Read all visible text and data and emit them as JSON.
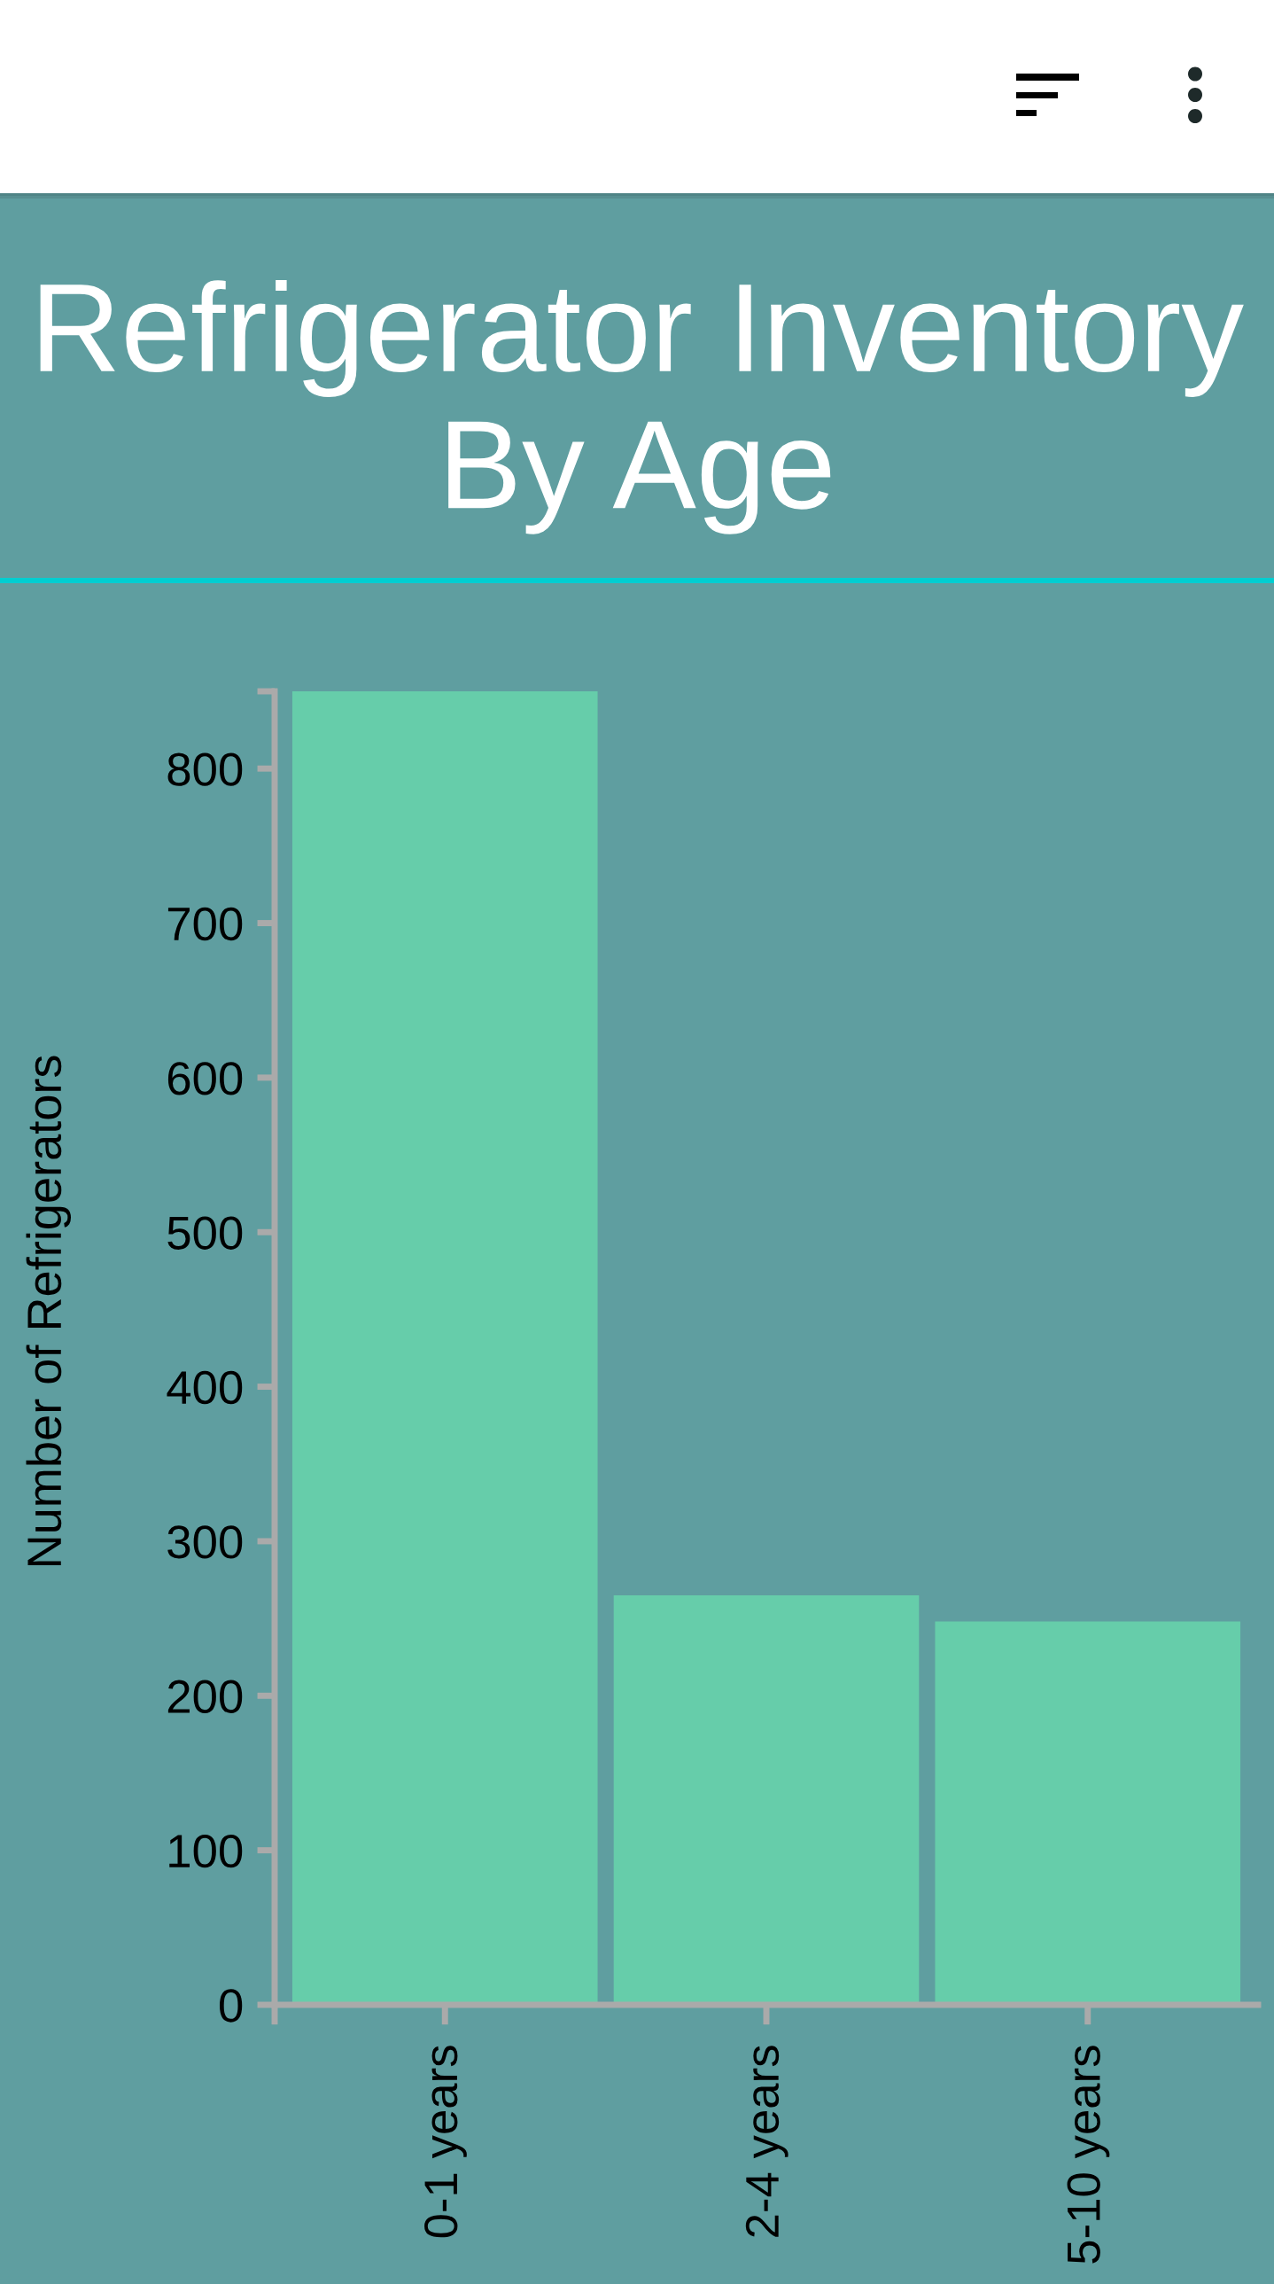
{
  "chart_data": {
    "type": "bar",
    "title": "Refrigerator Inventory By Age",
    "ylabel": "Number of Refrigerators",
    "categories": [
      "0-1 years",
      "2-4 years",
      "5-10 years"
    ],
    "values": [
      850,
      265,
      248
    ],
    "color": "#66cdaa",
    "ylim": [
      0,
      850
    ],
    "yticks": [
      0,
      100,
      200,
      300,
      400,
      500,
      600,
      700,
      800
    ]
  }
}
